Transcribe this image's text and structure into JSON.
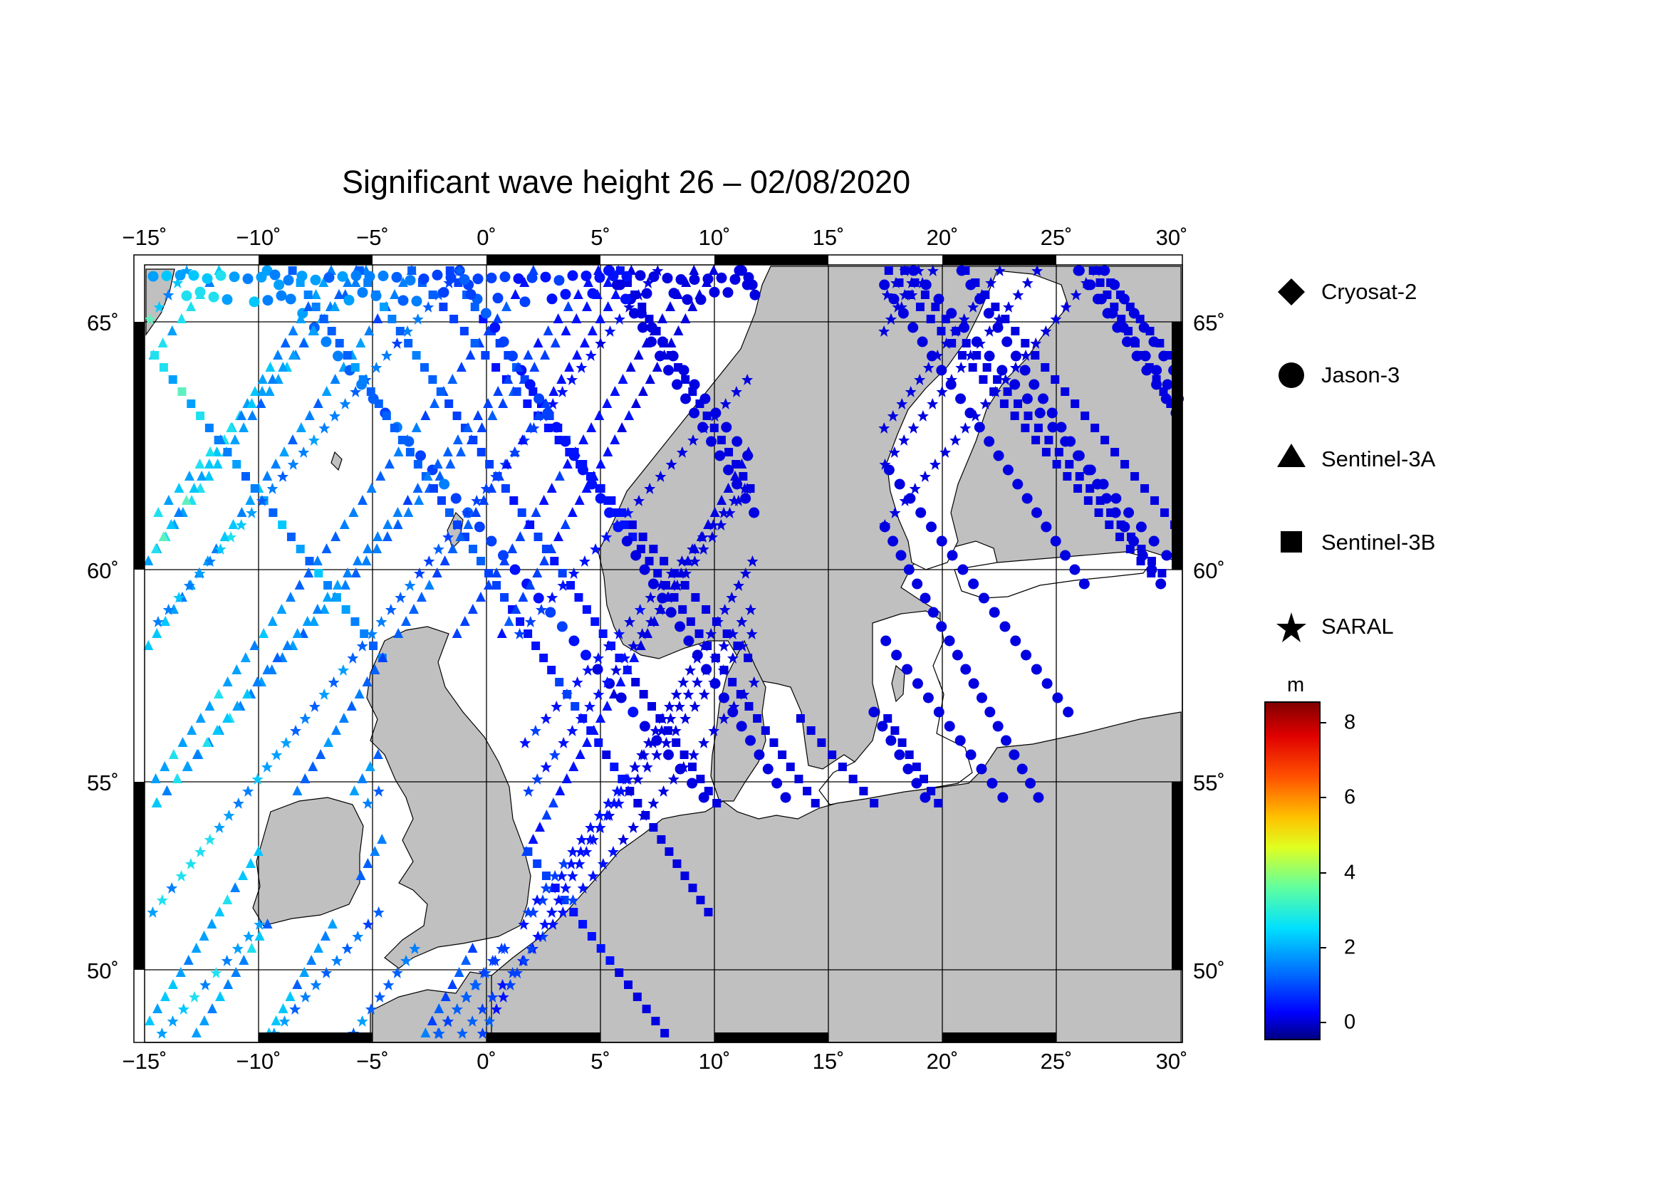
{
  "title": "Significant wave height 26 – 02/08/2020",
  "map": {
    "lon_ticks": [
      "−15˚",
      "−10˚",
      "−5˚",
      "0˚",
      "5˚",
      "10˚",
      "15˚",
      "20˚",
      "25˚",
      "30˚"
    ],
    "lat_ticks": [
      "50˚",
      "55˚",
      "60˚",
      "65˚"
    ],
    "land_color": "#c0c0c0",
    "ocean_color": "#ffffff"
  },
  "legend": {
    "items": [
      {
        "label": "Cryosat-2",
        "symbol": "diamond-icon"
      },
      {
        "label": "Jason-3",
        "symbol": "circle-icon"
      },
      {
        "label": "Sentinel-3A",
        "symbol": "triangle-icon"
      },
      {
        "label": "Sentinel-3B",
        "symbol": "square-icon"
      },
      {
        "label": "SARAL",
        "symbol": "star-icon"
      }
    ]
  },
  "colorbar": {
    "unit": "m",
    "ticks": [
      "8",
      "6",
      "4",
      "2",
      "0"
    ],
    "colors": [
      "#000080",
      "#0000ff",
      "#0080ff",
      "#00ffff",
      "#80ff80",
      "#ffff00",
      "#ff8000",
      "#ff0000",
      "#800000"
    ]
  }
}
